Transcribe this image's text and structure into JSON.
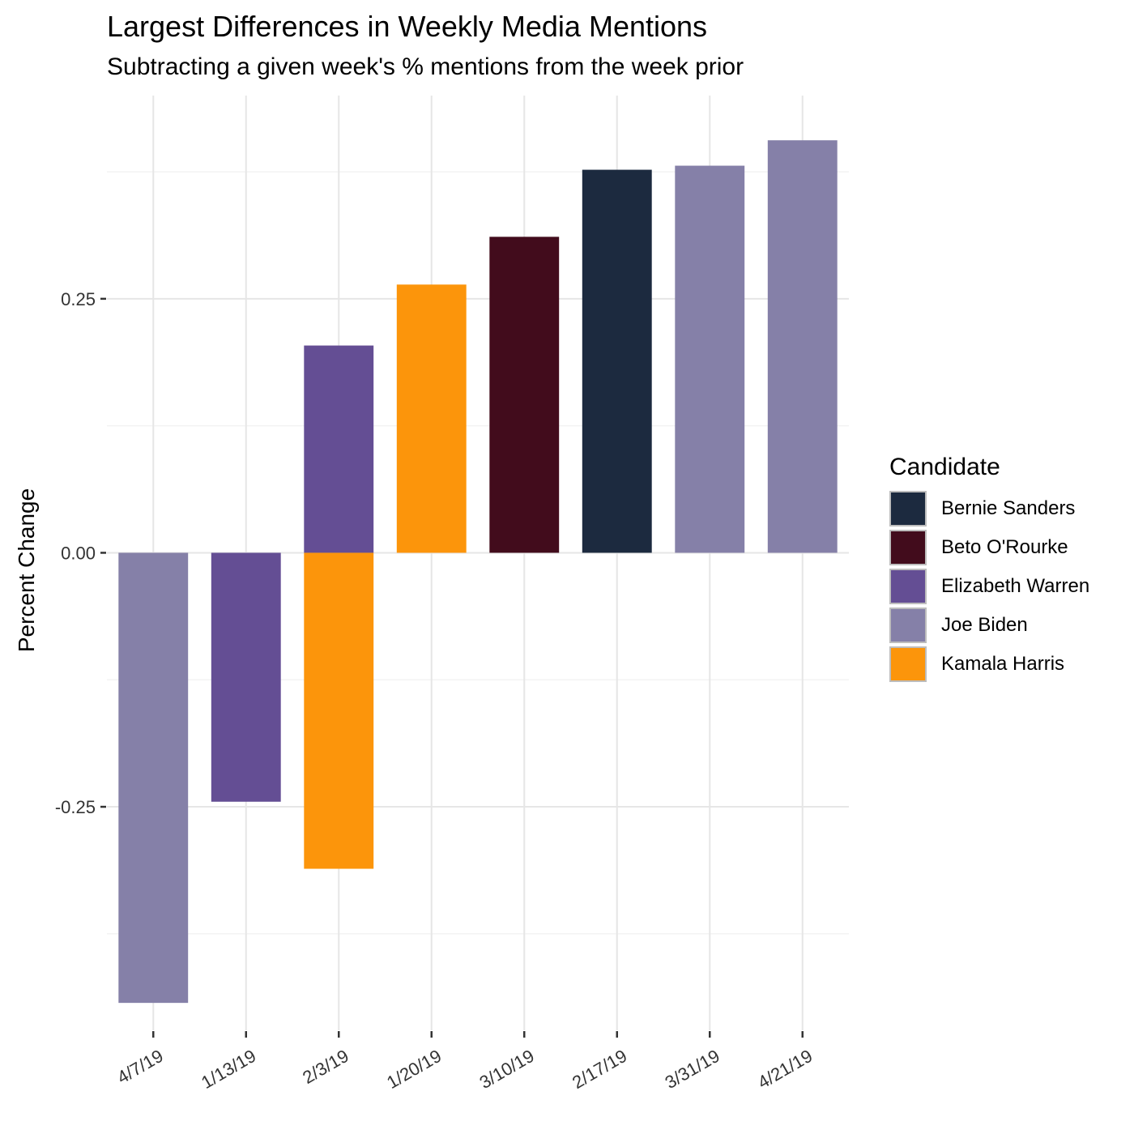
{
  "chart_data": {
    "type": "bar",
    "title": "Largest Differences in Weekly Media Mentions",
    "subtitle": "Subtracting a given week's % mentions from the week prior",
    "xlabel": "",
    "ylabel": "Percent Change",
    "ylim": [
      -0.47,
      0.45
    ],
    "yticks": [
      -0.25,
      0,
      0.25
    ],
    "ytick_labels": [
      "-0.25",
      "0.00",
      "0.25"
    ],
    "grid": true,
    "legend": {
      "title": "Candidate",
      "position": "right"
    },
    "categories": [
      "4/7/19",
      "1/13/19",
      "2/3/19",
      "1/20/19",
      "3/10/19",
      "2/17/19",
      "3/31/19",
      "4/21/19"
    ],
    "series": [
      {
        "name": "Bernie Sanders",
        "color": "#1c2a3f",
        "values": [
          0,
          0,
          0,
          0,
          0,
          0.377,
          0,
          0
        ]
      },
      {
        "name": "Beto O'Rourke",
        "color": "#420c1c",
        "values": [
          0,
          0,
          0,
          0,
          0.311,
          0,
          0,
          0
        ]
      },
      {
        "name": "Elizabeth Warren",
        "color": "#644e94",
        "values": [
          0,
          -0.245,
          0.204,
          0,
          0,
          0,
          0,
          0
        ]
      },
      {
        "name": "Joe Biden",
        "color": "#8580a8",
        "values": [
          -0.443,
          0,
          0,
          0,
          0,
          0,
          0.381,
          0.406
        ]
      },
      {
        "name": "Kamala Harris",
        "color": "#fc950b",
        "values": [
          0,
          0,
          -0.311,
          0.264,
          0,
          0,
          0,
          0
        ]
      }
    ]
  }
}
